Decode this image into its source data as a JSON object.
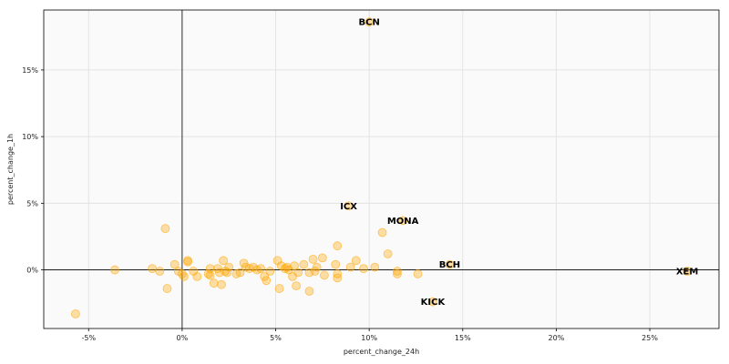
{
  "chart_data": {
    "type": "scatter",
    "xlabel": "percent_change_24h",
    "ylabel": "percent_change_1h",
    "x_unit": "%",
    "y_unit": "%",
    "xlim": [
      -7.4,
      28.7
    ],
    "ylim": [
      -4.4,
      19.5
    ],
    "x_ticks": [
      -5,
      0,
      5,
      10,
      15,
      20,
      25
    ],
    "y_ticks": [
      0,
      5,
      10,
      15
    ],
    "grid": true,
    "marker_color": "#FFA500",
    "reference_lines": {
      "x": 0,
      "y": 0
    },
    "points": [
      {
        "x": 10.0,
        "y": 18.6,
        "label": "BCN"
      },
      {
        "x": 8.9,
        "y": 4.8,
        "label": "ICX"
      },
      {
        "x": 11.8,
        "y": 3.7,
        "label": "MONA"
      },
      {
        "x": 14.3,
        "y": 0.4,
        "label": "BCH"
      },
      {
        "x": 27.0,
        "y": -0.1,
        "label": "XEM"
      },
      {
        "x": 13.4,
        "y": -2.4,
        "label": "KICK"
      },
      {
        "x": -5.7,
        "y": -3.3
      },
      {
        "x": -3.6,
        "y": 0.0
      },
      {
        "x": -1.6,
        "y": 0.1
      },
      {
        "x": -1.2,
        "y": -0.1
      },
      {
        "x": -0.9,
        "y": 3.1
      },
      {
        "x": -0.8,
        "y": -1.4
      },
      {
        "x": -0.4,
        "y": 0.4
      },
      {
        "x": -0.2,
        "y": -0.1
      },
      {
        "x": 0.0,
        "y": -0.3
      },
      {
        "x": 0.1,
        "y": -0.5
      },
      {
        "x": 0.3,
        "y": 0.7
      },
      {
        "x": 0.3,
        "y": 0.6
      },
      {
        "x": 0.6,
        "y": -0.1
      },
      {
        "x": 0.8,
        "y": -0.5
      },
      {
        "x": 1.4,
        "y": -0.3
      },
      {
        "x": 1.5,
        "y": 0.1
      },
      {
        "x": 1.5,
        "y": -0.4
      },
      {
        "x": 1.7,
        "y": -1.0
      },
      {
        "x": 1.9,
        "y": 0.1
      },
      {
        "x": 2.0,
        "y": -0.2
      },
      {
        "x": 2.1,
        "y": -1.1
      },
      {
        "x": 2.2,
        "y": 0.7
      },
      {
        "x": 2.3,
        "y": -0.1
      },
      {
        "x": 2.4,
        "y": -0.2
      },
      {
        "x": 2.5,
        "y": 0.2
      },
      {
        "x": 2.9,
        "y": -0.3
      },
      {
        "x": 3.1,
        "y": -0.2
      },
      {
        "x": 3.3,
        "y": 0.5
      },
      {
        "x": 3.4,
        "y": 0.2
      },
      {
        "x": 3.6,
        "y": 0.1
      },
      {
        "x": 3.8,
        "y": 0.2
      },
      {
        "x": 4.0,
        "y": 0.0
      },
      {
        "x": 4.2,
        "y": 0.1
      },
      {
        "x": 4.4,
        "y": -0.5
      },
      {
        "x": 4.5,
        "y": -0.8
      },
      {
        "x": 4.7,
        "y": -0.1
      },
      {
        "x": 5.1,
        "y": 0.7
      },
      {
        "x": 5.2,
        "y": -1.4
      },
      {
        "x": 5.3,
        "y": 0.3
      },
      {
        "x": 5.5,
        "y": 0.1
      },
      {
        "x": 5.6,
        "y": 0.2
      },
      {
        "x": 5.7,
        "y": 0.0
      },
      {
        "x": 5.9,
        "y": -0.5
      },
      {
        "x": 6.0,
        "y": 0.3
      },
      {
        "x": 6.1,
        "y": -1.2
      },
      {
        "x": 6.2,
        "y": -0.2
      },
      {
        "x": 6.5,
        "y": 0.4
      },
      {
        "x": 6.8,
        "y": -1.6
      },
      {
        "x": 6.8,
        "y": -0.2
      },
      {
        "x": 7.0,
        "y": 0.8
      },
      {
        "x": 7.1,
        "y": -0.1
      },
      {
        "x": 7.2,
        "y": 0.2
      },
      {
        "x": 7.5,
        "y": 0.9
      },
      {
        "x": 7.6,
        "y": -0.4
      },
      {
        "x": 8.2,
        "y": 0.4
      },
      {
        "x": 8.3,
        "y": 1.8
      },
      {
        "x": 8.3,
        "y": -0.3
      },
      {
        "x": 8.3,
        "y": -0.6
      },
      {
        "x": 9.0,
        "y": 0.2
      },
      {
        "x": 9.3,
        "y": 0.7
      },
      {
        "x": 9.7,
        "y": 0.1
      },
      {
        "x": 10.3,
        "y": 0.2
      },
      {
        "x": 10.7,
        "y": 2.8
      },
      {
        "x": 11.0,
        "y": 1.2
      },
      {
        "x": 11.5,
        "y": -0.1
      },
      {
        "x": 11.5,
        "y": -0.3
      },
      {
        "x": 12.6,
        "y": -0.3
      }
    ]
  }
}
